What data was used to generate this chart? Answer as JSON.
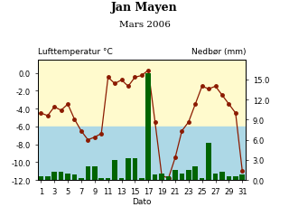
{
  "title": "Jan Mayen",
  "subtitle": "Mars 2006",
  "xlabel": "Dato",
  "ylabel_left": "Lufttemperatur °C",
  "ylabel_right": "Nedbør (mm)",
  "days": [
    1,
    2,
    3,
    4,
    5,
    6,
    7,
    8,
    9,
    10,
    11,
    12,
    13,
    14,
    15,
    16,
    17,
    18,
    19,
    20,
    21,
    22,
    23,
    24,
    25,
    26,
    27,
    28,
    29,
    30,
    31
  ],
  "temperature": [
    -4.5,
    -4.8,
    -3.8,
    -4.2,
    -3.5,
    -5.2,
    -6.5,
    -7.5,
    -7.2,
    -6.8,
    -0.5,
    -1.2,
    -0.8,
    -1.5,
    -0.5,
    -0.3,
    0.3,
    -5.5,
    -11.5,
    -11.8,
    -9.5,
    -6.5,
    -5.5,
    -3.5,
    -1.5,
    -1.8,
    -1.5,
    -2.5,
    -3.5,
    -4.5,
    -11.0
  ],
  "precipitation": [
    0.5,
    0.5,
    1.2,
    1.2,
    1.0,
    0.8,
    0.3,
    2.0,
    2.0,
    0.3,
    0.3,
    3.0,
    0.3,
    3.2,
    3.2,
    0.3,
    16.0,
    0.8,
    1.0,
    0.5,
    1.5,
    1.0,
    1.5,
    2.0,
    0.3,
    5.5,
    1.0,
    1.2,
    0.5,
    0.5,
    0.8
  ],
  "temp_color": "#8B1A00",
  "precip_color": "#006400",
  "bg_color_top": "#FFFACD",
  "bg_color_bottom": "#ADD8E6",
  "ylim_temp": [
    -12.0,
    1.5
  ],
  "ylim_precip": [
    0.0,
    18.0
  ],
  "xticks": [
    1,
    3,
    5,
    7,
    9,
    11,
    13,
    15,
    17,
    19,
    21,
    23,
    25,
    27,
    29,
    31
  ],
  "yticks_left": [
    0.0,
    -2.0,
    -4.0,
    -6.0,
    -8.0,
    -10.0,
    -12.0
  ],
  "yticks_right": [
    0.0,
    3.0,
    6.0,
    9.0,
    12.0,
    15.0
  ],
  "bg_split_temp": -6.0,
  "title_fontsize": 9,
  "subtitle_fontsize": 7.5,
  "tick_fontsize": 6,
  "label_fontsize": 6.5,
  "axis_label_fontsize": 6.5
}
